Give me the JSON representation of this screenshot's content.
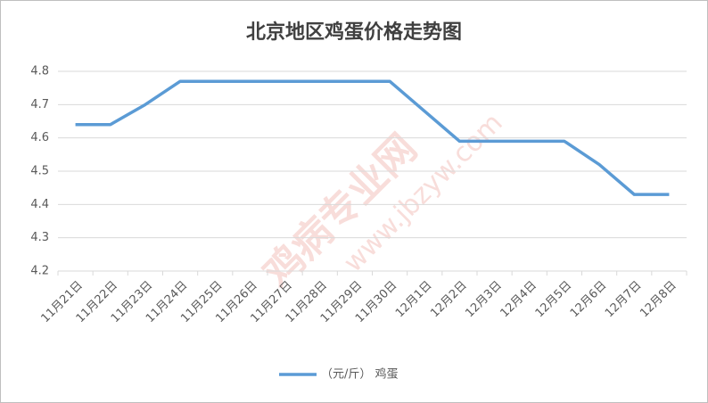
{
  "chart_data": {
    "type": "line",
    "title": "北京地区鸡蛋价格走势图",
    "categories": [
      "11月21日",
      "11月22日",
      "11月23日",
      "11月24日",
      "11月25日",
      "11月26日",
      "11月27日",
      "11月28日",
      "11月29日",
      "11月30日",
      "12月1日",
      "12月2日",
      "12月3日",
      "12月4日",
      "12月5日",
      "12月6日",
      "12月7日",
      "12月8日"
    ],
    "series": [
      {
        "name": "（元/斤） 鸡蛋",
        "color": "#5b9bd5",
        "values": [
          4.64,
          4.64,
          4.7,
          4.77,
          4.77,
          4.77,
          4.77,
          4.77,
          4.77,
          4.77,
          4.68,
          4.59,
          4.59,
          4.59,
          4.59,
          4.52,
          4.43,
          4.43
        ]
      }
    ],
    "ylim": [
      4.2,
      4.8
    ],
    "yticks": [
      4.2,
      4.3,
      4.4,
      4.5,
      4.6,
      4.7,
      4.8
    ],
    "grid": true,
    "legend": "bottom",
    "watermark": [
      "鸡病专业网",
      "www.jbzyw.com"
    ]
  }
}
